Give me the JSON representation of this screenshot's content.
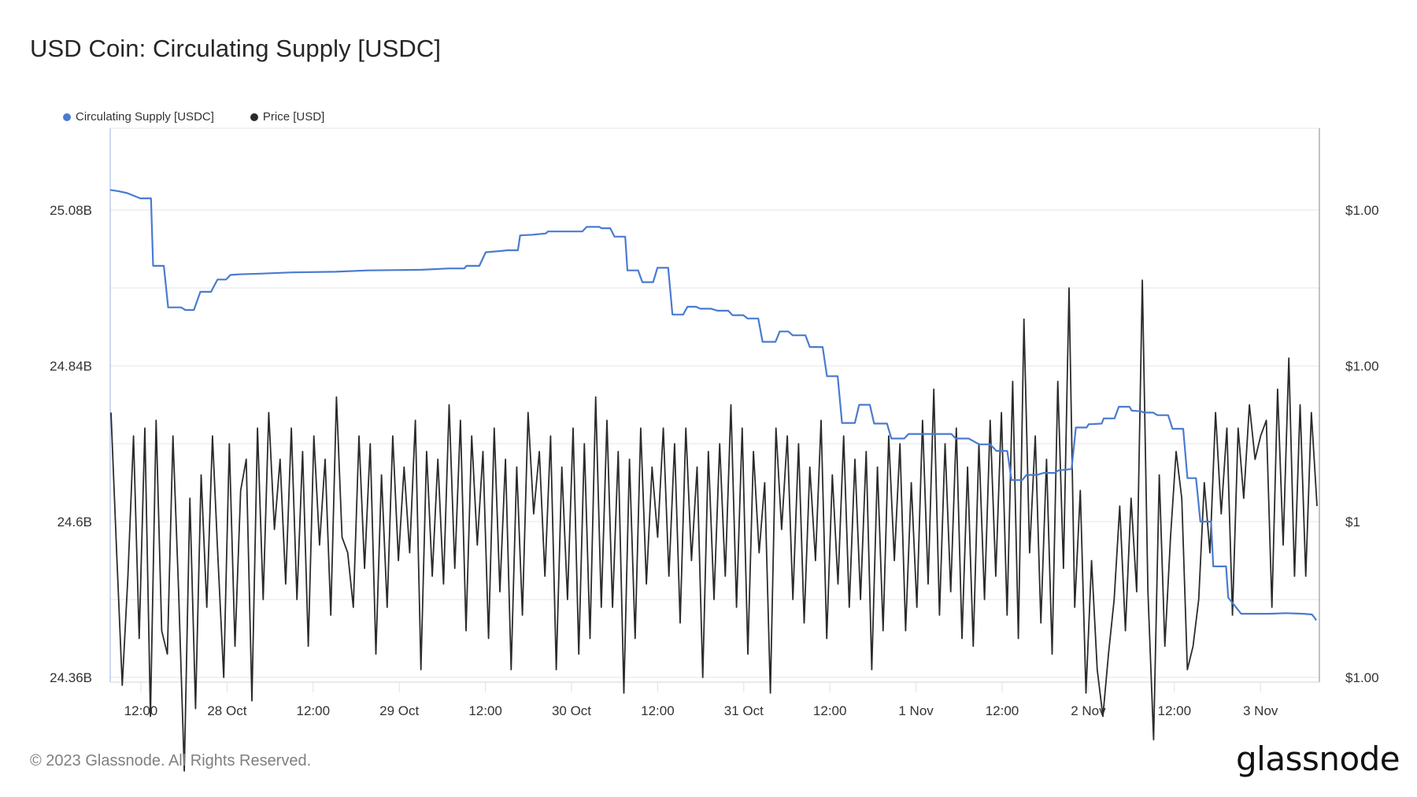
{
  "title": "USD Coin: Circulating Supply [USDC]",
  "legend": [
    {
      "label": "Circulating Supply [USDC]",
      "color": "#4a7bd0"
    },
    {
      "label": "Price [USD]",
      "color": "#2b2b2b"
    }
  ],
  "footer": {
    "copyright": "© 2023 Glassnode. All Rights Reserved.",
    "logo": "glassnode"
  },
  "chart_data": {
    "type": "line",
    "title": "USD Coin: Circulating Supply [USDC]",
    "xlabel": "",
    "ylabel_left": "Circulating Supply [USDC]",
    "ylabel_right": "Price [USD]",
    "grid": true,
    "legend_position": "top-left",
    "x_range": [
      "27 Oct 07:30",
      "3 Nov 09:00"
    ],
    "x_ticks": [
      {
        "label": "12:00",
        "t": 0.1887
      },
      {
        "label": "28 Oct",
        "t": 0.5
      },
      {
        "label": "12:00",
        "t": 1.0
      },
      {
        "label": "29 Oct",
        "t": 1.5
      },
      {
        "label": "12:00",
        "t": 2.0
      },
      {
        "label": "30 Oct",
        "t": 2.5
      },
      {
        "label": "12:00",
        "t": 3.0
      },
      {
        "label": "31 Oct",
        "t": 3.5
      },
      {
        "label": "12:00",
        "t": 4.0
      },
      {
        "label": "1 Nov",
        "t": 4.5
      },
      {
        "label": "12:00",
        "t": 5.0
      },
      {
        "label": "2 Nov",
        "t": 5.5
      },
      {
        "label": "12:00",
        "t": 6.0
      },
      {
        "label": "3 Nov",
        "t": 6.5
      }
    ],
    "y_left": {
      "ylim": [
        24.36,
        25.2
      ],
      "unit": "B",
      "ticks": [
        {
          "v": 25.08,
          "label": "25.08B"
        },
        {
          "v": 24.84,
          "label": "24.84B"
        },
        {
          "v": 24.6,
          "label": "24.6B"
        },
        {
          "v": 24.36,
          "label": "24.36B"
        }
      ],
      "gridlines": [
        25.08,
        24.96,
        24.84,
        24.72,
        24.6,
        24.48,
        24.36
      ]
    },
    "y_right": {
      "ticks": [
        {
          "v": 1.0004,
          "label": "$1.00"
        },
        {
          "v": 1.0002,
          "label": "$1.00"
        },
        {
          "v": 1.0,
          "label": "$1"
        },
        {
          "v": 0.9998,
          "label": "$1.00"
        }
      ]
    },
    "series": [
      {
        "name": "Circulating Supply [USDC]",
        "color": "#4a7bd0",
        "step": true,
        "points": [
          [
            0.0,
            25.111
          ],
          [
            0.04,
            25.109
          ],
          [
            0.08,
            25.106
          ],
          [
            0.14,
            25.098
          ],
          [
            0.19,
            25.098
          ],
          [
            0.2,
            24.994
          ],
          [
            0.25,
            24.994
          ],
          [
            0.27,
            24.93
          ],
          [
            0.33,
            24.93
          ],
          [
            0.35,
            24.926
          ],
          [
            0.39,
            24.926
          ],
          [
            0.42,
            24.954
          ],
          [
            0.47,
            24.954
          ],
          [
            0.5,
            24.973
          ],
          [
            0.54,
            24.973
          ],
          [
            0.56,
            24.98
          ],
          [
            0.6,
            24.981
          ],
          [
            0.7,
            24.982
          ],
          [
            0.85,
            24.984
          ],
          [
            1.05,
            24.985
          ],
          [
            1.2,
            24.987
          ],
          [
            1.45,
            24.988
          ],
          [
            1.58,
            24.99
          ],
          [
            1.65,
            24.99
          ],
          [
            1.66,
            24.994
          ],
          [
            1.72,
            24.994
          ],
          [
            1.75,
            25.015
          ],
          [
            1.82,
            25.017
          ],
          [
            1.85,
            25.018
          ],
          [
            1.9,
            25.018
          ],
          [
            1.91,
            25.041
          ],
          [
            1.97,
            25.042
          ],
          [
            2.03,
            25.044
          ],
          [
            2.04,
            25.047
          ],
          [
            2.2,
            25.047
          ],
          [
            2.22,
            25.054
          ],
          [
            2.28,
            25.054
          ],
          [
            2.29,
            25.052
          ],
          [
            2.33,
            25.052
          ],
          [
            2.35,
            25.039
          ],
          [
            2.4,
            25.039
          ],
          [
            2.41,
            24.987
          ],
          [
            2.46,
            24.987
          ],
          [
            2.48,
            24.969
          ],
          [
            2.53,
            24.969
          ],
          [
            2.55,
            24.991
          ],
          [
            2.6,
            24.991
          ],
          [
            2.62,
            24.919
          ],
          [
            2.67,
            24.919
          ],
          [
            2.69,
            24.931
          ],
          [
            2.73,
            24.931
          ],
          [
            2.75,
            24.928
          ],
          [
            2.8,
            24.928
          ],
          [
            2.83,
            24.925
          ],
          [
            2.88,
            24.925
          ],
          [
            2.9,
            24.918
          ],
          [
            2.95,
            24.918
          ],
          [
            2.97,
            24.913
          ],
          [
            3.02,
            24.913
          ],
          [
            3.04,
            24.877
          ],
          [
            3.1,
            24.877
          ],
          [
            3.12,
            24.893
          ],
          [
            3.16,
            24.893
          ],
          [
            3.18,
            24.887
          ],
          [
            3.24,
            24.887
          ],
          [
            3.26,
            24.869
          ],
          [
            3.32,
            24.869
          ],
          [
            3.34,
            24.824
          ],
          [
            3.39,
            24.824
          ],
          [
            3.41,
            24.752
          ],
          [
            3.47,
            24.752
          ],
          [
            3.49,
            24.78
          ],
          [
            3.54,
            24.78
          ],
          [
            3.56,
            24.751
          ],
          [
            3.62,
            24.751
          ],
          [
            3.64,
            24.728
          ],
          [
            3.7,
            24.728
          ],
          [
            3.72,
            24.735
          ],
          [
            3.92,
            24.735
          ],
          [
            3.94,
            24.728
          ],
          [
            4.0,
            24.728
          ],
          [
            4.05,
            24.719
          ],
          [
            4.1,
            24.719
          ],
          [
            4.13,
            24.709
          ],
          [
            4.18,
            24.709
          ],
          [
            4.2,
            24.664
          ],
          [
            4.25,
            24.664
          ],
          [
            4.27,
            24.672
          ],
          [
            4.32,
            24.672
          ],
          [
            4.35,
            24.675
          ],
          [
            4.4,
            24.675
          ],
          [
            4.42,
            24.679
          ],
          [
            4.48,
            24.681
          ],
          [
            4.5,
            24.745
          ],
          [
            4.55,
            24.745
          ],
          [
            4.56,
            24.75
          ],
          [
            4.62,
            24.751
          ],
          [
            4.63,
            24.759
          ],
          [
            4.68,
            24.759
          ],
          [
            4.7,
            24.777
          ],
          [
            4.75,
            24.777
          ],
          [
            4.76,
            24.771
          ],
          [
            4.8,
            24.77
          ],
          [
            4.82,
            24.768
          ],
          [
            4.86,
            24.768
          ],
          [
            4.88,
            24.764
          ],
          [
            4.93,
            24.764
          ],
          [
            4.95,
            24.743
          ],
          [
            5.0,
            24.743
          ],
          [
            5.02,
            24.667
          ],
          [
            5.06,
            24.667
          ],
          [
            5.08,
            24.6
          ],
          [
            5.13,
            24.6
          ],
          [
            5.14,
            24.531
          ],
          [
            5.2,
            24.531
          ],
          [
            5.21,
            24.483
          ],
          [
            5.27,
            24.458
          ],
          [
            5.4,
            24.458
          ],
          [
            5.48,
            24.459
          ],
          [
            5.56,
            24.458
          ],
          [
            5.6,
            24.457
          ],
          [
            5.61,
            24.453
          ],
          [
            5.62,
            24.448
          ]
        ]
      },
      {
        "name": "Price [USD]",
        "color": "#2b2b2b",
        "step": false,
        "values": [
          1.00014,
          0.99996,
          0.99979,
          0.99993,
          1.00011,
          0.99985,
          1.00012,
          0.99975,
          1.00013,
          0.99986,
          0.99983,
          1.00011,
          0.99991,
          0.99968,
          1.00003,
          0.99976,
          1.00006,
          0.99989,
          1.00011,
          0.99995,
          0.9998,
          1.0001,
          0.99984,
          1.00004,
          1.00008,
          0.99977,
          1.00012,
          0.9999,
          1.00014,
          0.99999,
          1.00008,
          0.99992,
          1.00012,
          0.9999,
          1.00009,
          0.99984,
          1.00011,
          0.99997,
          1.00008,
          0.99988,
          1.00016,
          0.99998,
          0.99996,
          0.99989,
          1.00011,
          0.99994,
          1.0001,
          0.99983,
          1.00006,
          0.99989,
          1.00011,
          0.99995,
          1.00007,
          0.99996,
          1.00013,
          0.99981,
          1.00009,
          0.99993,
          1.00008,
          0.99992,
          1.00015,
          0.99994,
          1.00013,
          0.99986,
          1.00011,
          0.99997,
          1.00009,
          0.99985,
          1.00012,
          0.99991,
          1.00008,
          0.99981,
          1.00007,
          0.99988,
          1.00014,
          1.00001,
          1.00009,
          0.99993,
          1.00011,
          0.99981,
          1.00007,
          0.9999,
          1.00012,
          0.99983,
          1.0001,
          0.99985,
          1.00016,
          0.99989,
          1.00013,
          0.99989,
          1.00009,
          0.99978,
          1.00008,
          0.99985,
          1.00012,
          0.99992,
          1.00007,
          0.99998,
          1.00012,
          0.99993,
          1.0001,
          0.99987,
          1.00012,
          0.99995,
          1.00007,
          0.9998,
          1.00009,
          0.9999,
          1.0001,
          0.99993,
          1.00015,
          0.99989,
          1.00012,
          0.99983,
          1.00009,
          0.99996,
          1.00005,
          0.99978,
          1.00012,
          0.99999,
          1.00011,
          0.9999,
          1.0001,
          0.99987,
          1.00007,
          0.99995,
          1.00013,
          0.99985,
          1.00006,
          0.99992,
          1.00011,
          0.99989,
          1.00008,
          0.9999,
          1.00009,
          0.99981,
          1.00007,
          0.99986,
          1.00011,
          0.99995,
          1.0001,
          0.99986,
          1.00005,
          0.99989,
          1.00013,
          0.99992,
          1.00017,
          0.99988,
          1.0001,
          0.99991,
          1.00012,
          0.99985,
          1.00007,
          0.99984,
          1.0001,
          0.9999,
          1.00013,
          0.99993,
          1.00014,
          0.99988,
          1.00018,
          0.99985,
          1.00026,
          0.99996,
          1.00011,
          0.99987,
          1.00008,
          0.99983,
          1.00018,
          0.99994,
          1.0003,
          0.99989,
          1.00004,
          0.99978,
          0.99995,
          0.99981,
          0.99975,
          0.99983,
          0.9999,
          1.00002,
          0.99986,
          1.00003,
          0.99991,
          1.00031,
          0.99991,
          0.99972,
          1.00006,
          0.99984,
          0.99998,
          1.00009,
          1.00003,
          0.99981,
          0.99984,
          0.9999,
          1.00005,
          0.99996,
          1.00014,
          1.00001,
          1.00012,
          0.99988,
          1.00012,
          1.00003,
          1.00015,
          1.00008,
          1.00011,
          1.00013,
          0.99989,
          1.00017,
          0.99997,
          1.00021,
          0.99993,
          1.00015,
          0.99993,
          1.00014,
          1.00002
        ]
      }
    ]
  }
}
